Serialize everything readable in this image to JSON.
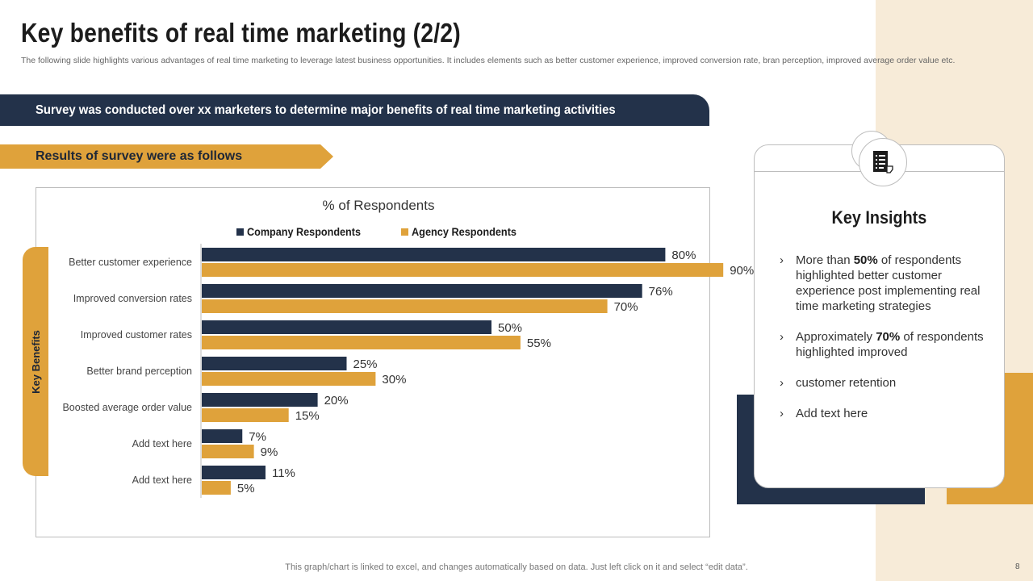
{
  "slide": {
    "title": "Key benefits of real time marketing (2/2)",
    "subtitle": "The following slide highlights various advantages of real time marketing to leverage latest business opportunities. It includes elements such as better customer experience, improved conversion rate, bran perception, improved average order value etc.",
    "banner": "Survey was conducted over xx marketers to determine major benefits of  real time marketing activities",
    "results_label": "Results of survey were as follows",
    "key_benefits_label": "Key Benefits",
    "footer": "This graph/chart is linked to excel,  and changes automatically based on data. Just left click on it and select “edit data”.",
    "page_number": "8",
    "colors": {
      "navy": "#23324a",
      "gold": "#dfa23b",
      "cream": "#f7ebd8"
    }
  },
  "insights": {
    "title": "Key Insights",
    "icon": "document-list-icon",
    "items": [
      {
        "pre": "More than ",
        "bold": "50%",
        "post": " of respondents highlighted better customer experience post implementing real time marketing strategies"
      },
      {
        "pre": "Approximately ",
        "bold": "70%",
        "post": " of respondents highlighted improved"
      },
      {
        "pre": "customer retention",
        "bold": "",
        "post": ""
      },
      {
        "pre": "Add text here",
        "bold": "",
        "post": ""
      }
    ]
  },
  "chart_data": {
    "type": "bar",
    "orientation": "horizontal",
    "title": "% of Respondents",
    "categories": [
      "Better customer experience",
      "Improved conversion rates",
      "Improved customer rates",
      "Better brand perception",
      "Boosted average order value",
      "Add text here",
      "Add text here"
    ],
    "series": [
      {
        "name": "Company Respondents",
        "color": "#23324a",
        "values": [
          80,
          76,
          50,
          25,
          20,
          7,
          11
        ]
      },
      {
        "name": "Agency Respondents",
        "color": "#dfa23b",
        "values": [
          90,
          70,
          55,
          30,
          15,
          9,
          5
        ]
      }
    ],
    "value_suffix": "%",
    "xlim": [
      0,
      100
    ],
    "legend_position": "top"
  }
}
